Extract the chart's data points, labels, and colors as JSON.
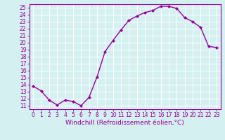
{
  "x": [
    0,
    1,
    2,
    3,
    4,
    5,
    6,
    7,
    8,
    9,
    10,
    11,
    12,
    13,
    14,
    15,
    16,
    17,
    18,
    19,
    20,
    21,
    22,
    23
  ],
  "y": [
    13.8,
    13.1,
    11.8,
    11.1,
    11.8,
    11.6,
    11.0,
    12.2,
    15.1,
    18.7,
    20.3,
    21.8,
    23.2,
    23.8,
    24.3,
    24.6,
    25.2,
    25.2,
    24.9,
    23.6,
    23.0,
    22.2,
    19.5,
    19.3
  ],
  "line_color": "#990099",
  "marker": "D",
  "marker_size": 2.0,
  "line_width": 1.0,
  "xlabel": "Windchill (Refroidissement éolien,°C)",
  "xlabel_fontsize": 6.5,
  "bg_color": "#d4f0f0",
  "grid_color": "#ffffff",
  "xlim": [
    -0.5,
    23.5
  ],
  "ylim": [
    10.5,
    25.5
  ],
  "yticks": [
    11,
    12,
    13,
    14,
    15,
    16,
    17,
    18,
    19,
    20,
    21,
    22,
    23,
    24,
    25
  ],
  "xtick_labels": [
    "0",
    "1",
    "2",
    "3",
    "4",
    "5",
    "6",
    "7",
    "8",
    "9",
    "10",
    "11",
    "12",
    "13",
    "14",
    "15",
    "16",
    "17",
    "18",
    "19",
    "20",
    "21",
    "22",
    "23"
  ],
  "tick_fontsize": 5.5,
  "tick_color": "#990099",
  "spine_color": "#990099"
}
